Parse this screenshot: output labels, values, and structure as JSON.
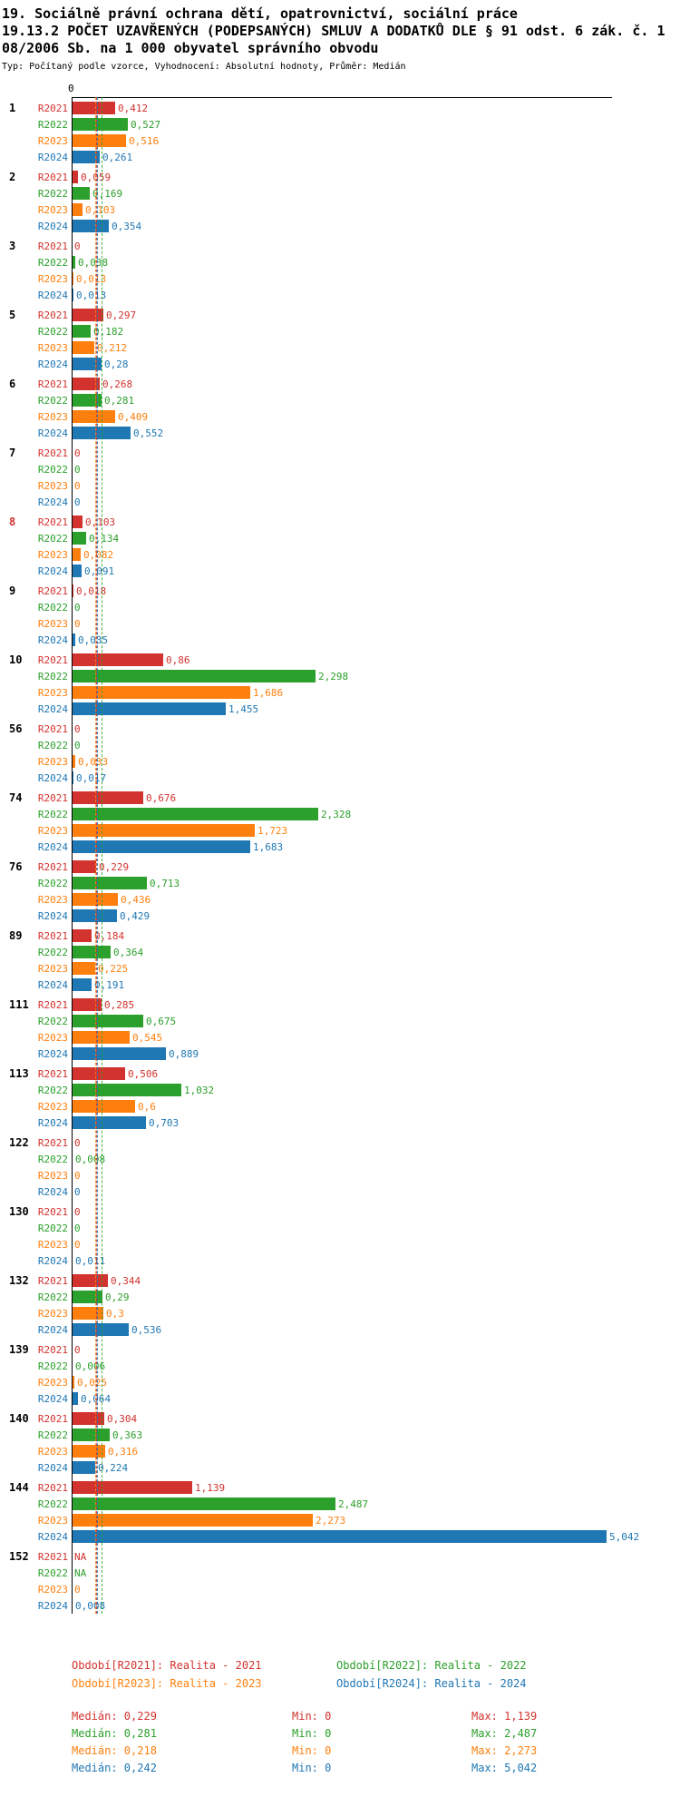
{
  "title": {
    "line1": "19. Sociálně právní ochrana dětí, opatrovnictví, sociální práce",
    "line2": "19.13.2 POČET UZAVŘENÝCH (PODEPSANÝCH) SMLUV A DODATKŮ DLE § 91 odst. 6 zák. č. 1",
    "line3": "08/2006 Sb. na 1 000 obyvatel správního obvodu",
    "meta": "Typ: Počítaný podle vzorce, Vyhodnocení: Absolutní hodnoty, Průměr: Medián"
  },
  "chart_data": {
    "type": "bar",
    "orientation": "horizontal",
    "x_axis": {
      "zero_label": "0",
      "xlim": [
        0,
        5.042
      ],
      "grid": false
    },
    "legend_position": "bottom",
    "median_lines": true,
    "categories": [
      "1",
      "2",
      "3",
      "5",
      "6",
      "7",
      "8",
      "9",
      "10",
      "56",
      "74",
      "76",
      "89",
      "111",
      "113",
      "122",
      "130",
      "132",
      "139",
      "140",
      "144",
      "152"
    ],
    "highlighted_category": "8",
    "series": [
      {
        "name": "R2021",
        "color": "#d2332e",
        "legend": "Období[R2021]: Realita - 2021",
        "median": 0.229,
        "stats": {
          "median": "Medián: 0,229",
          "min": "Min: 0",
          "max": "Max: 1,139"
        },
        "values": [
          0.412,
          0.059,
          0,
          0.297,
          0.268,
          0,
          0.103,
          0.018,
          0.86,
          0,
          0.676,
          0.229,
          0.184,
          0.285,
          0.506,
          0,
          0,
          0.344,
          0,
          0.304,
          1.139,
          null
        ],
        "labels": [
          "0,412",
          "0,059",
          "0",
          "0,297",
          "0,268",
          "0",
          "0,103",
          "0,018",
          "0,86",
          "0",
          "0,676",
          "0,229",
          "0,184",
          "0,285",
          "0,506",
          "0",
          "0",
          "0,344",
          "0",
          "0,304",
          "1,139",
          "NA"
        ]
      },
      {
        "name": "R2022",
        "color": "#2ca02c",
        "legend": "Období[R2022]: Realita - 2022",
        "median": 0.281,
        "stats": {
          "median": "Medián: 0,281",
          "min": "Min: 0",
          "max": "Max: 2,487"
        },
        "values": [
          0.527,
          0.169,
          0.038,
          0.182,
          0.281,
          0,
          0.134,
          0,
          2.298,
          0,
          2.328,
          0.713,
          0.364,
          0.675,
          1.032,
          0.008,
          0,
          0.29,
          0.006,
          0.363,
          2.487,
          null
        ],
        "labels": [
          "0,527",
          "0,169",
          "0,038",
          "0,182",
          "0,281",
          "0",
          "0,134",
          "0",
          "2,298",
          "0",
          "2,328",
          "0,713",
          "0,364",
          "0,675",
          "1,032",
          "0,008",
          "0",
          "0,29",
          "0,006",
          "0,363",
          "2,487",
          "NA"
        ]
      },
      {
        "name": "R2023",
        "color": "#ff7f0e",
        "legend": "Období[R2023]: Realita - 2023",
        "median": 0.218,
        "stats": {
          "median": "Medián: 0,218",
          "min": "Min: 0",
          "max": "Max: 2,273"
        },
        "values": [
          0.516,
          0.103,
          0.013,
          0.212,
          0.409,
          0,
          0.082,
          0,
          1.686,
          0.033,
          1.723,
          0.436,
          0.225,
          0.545,
          0.6,
          0,
          0,
          0.3,
          0.025,
          0.316,
          2.273,
          0
        ],
        "labels": [
          "0,516",
          "0,103",
          "0,013",
          "0,212",
          "0,409",
          "0",
          "0,082",
          "0",
          "1,686",
          "0,033",
          "1,723",
          "0,436",
          "0,225",
          "0,545",
          "0,6",
          "0",
          "0",
          "0,3",
          "0,025",
          "0,316",
          "2,273",
          "0"
        ]
      },
      {
        "name": "R2024",
        "color": "#1f77b4",
        "legend": "Období[R2024]: Realita - 2024",
        "median": 0.242,
        "stats": {
          "median": "Medián: 0,242",
          "min": "Min: 0",
          "max": "Max: 5,042"
        },
        "values": [
          0.261,
          0.354,
          0.013,
          0.28,
          0.552,
          0,
          0.091,
          0.035,
          1.455,
          0.017,
          1.683,
          0.429,
          0.191,
          0.889,
          0.703,
          0,
          0.011,
          0.536,
          0.064,
          0.224,
          5.042,
          0.008
        ],
        "labels": [
          "0,261",
          "0,354",
          "0,013",
          "0,28",
          "0,552",
          "0",
          "0,091",
          "0,035",
          "1,455",
          "0,017",
          "1,683",
          "0,429",
          "0,191",
          "0,889",
          "0,703",
          "0",
          "0,011",
          "0,536",
          "0,064",
          "0,224",
          "5,042",
          "0,008"
        ]
      }
    ]
  }
}
